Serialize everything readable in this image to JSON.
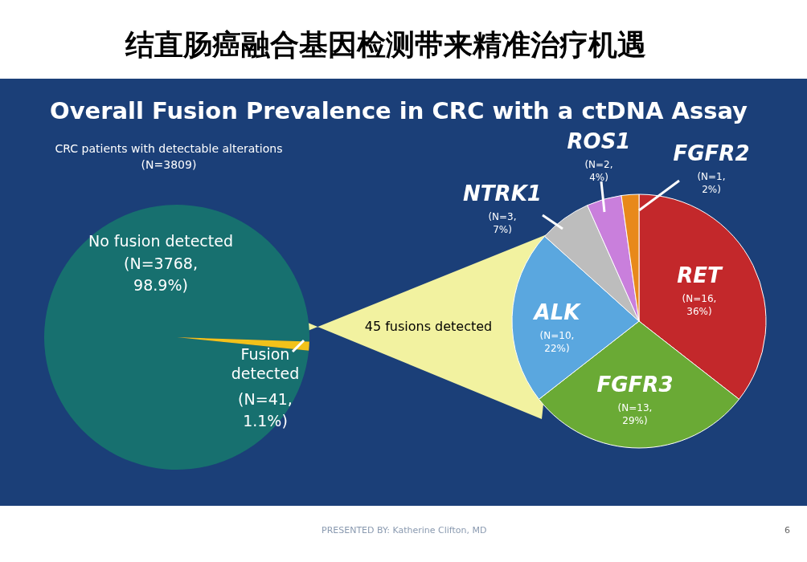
{
  "chart_data": [
    {
      "type": "pie",
      "title": "CRC patients with detectable alterations",
      "subtitle": "(N=3809)",
      "annotations": [
        "结直肠癌融合基因检测带来精准治疗机遇",
        "Overall Fusion Prevalence in CRC with a ctDNA Assay"
      ],
      "categories": [
        "No fusion detected",
        "Fusion detected"
      ],
      "values": [
        3768,
        41
      ],
      "value_labels": [
        "(N=3768,\n98.9%)",
        "(N=41,\n1.1%)"
      ],
      "colors": [
        "#17706f",
        "#f2c21a"
      ]
    },
    {
      "type": "pie",
      "title": "45 fusions detected",
      "annotations": [
        "PRESENTED BY: Katherine Clifton, MD",
        "6"
      ],
      "categories": [
        "RET",
        "FGFR3",
        "ALK",
        "NTRK1",
        "ROS1",
        "FGFR2"
      ],
      "values": [
        16,
        13,
        10,
        3,
        2,
        1
      ],
      "value_labels": [
        "(N=16,\n36%)",
        "(N=13,\n29%)",
        "(N=10,\n22%)",
        "(N=3,\n7%)",
        "(N=2,\n4%)",
        "(N=1,\n2%)"
      ],
      "colors": [
        "#c3282b",
        "#6aaa35",
        "#5aa7df",
        "#bdbdbd",
        "#c97fdc",
        "#e8891b"
      ]
    }
  ]
}
